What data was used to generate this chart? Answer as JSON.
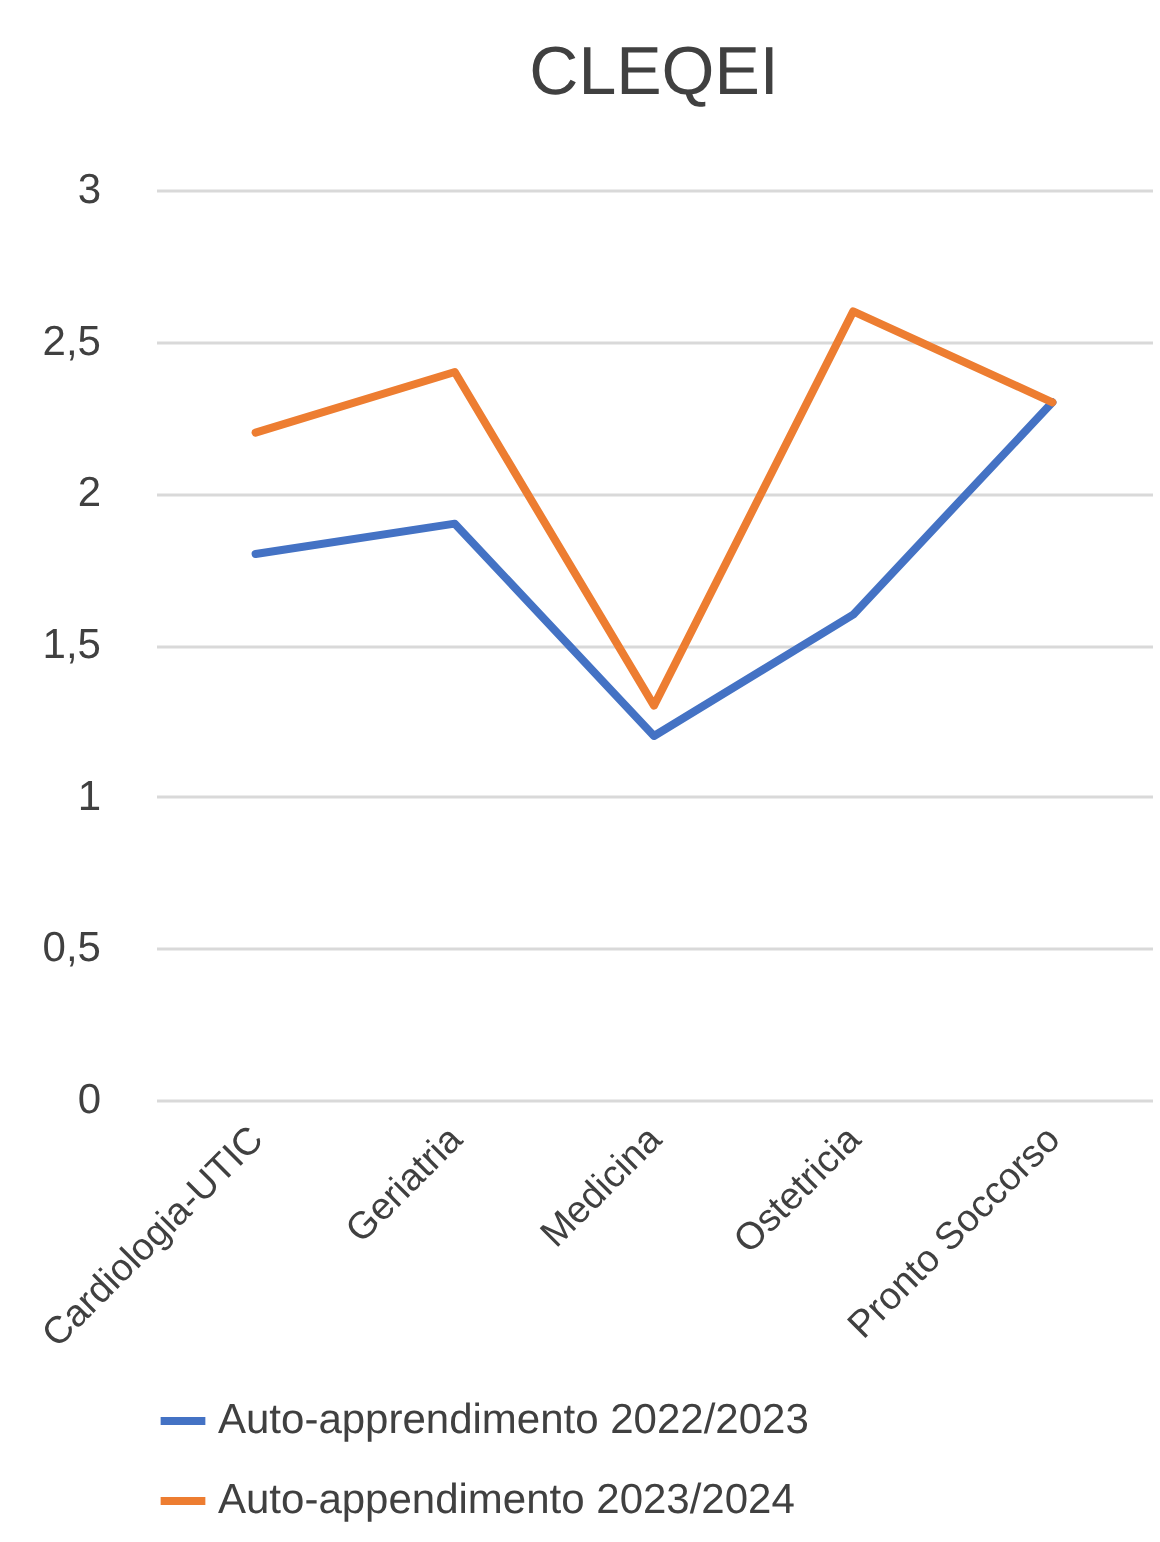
{
  "chart_data": {
    "type": "line",
    "title": "CLEQEI",
    "categories": [
      "Cardiologia-UTIC",
      "Geriatria",
      "Medicina",
      "Ostetricia",
      "Pronto Soccorso"
    ],
    "series": [
      {
        "name": "Auto-apprendimento 2022/2023",
        "color": "#4472c4",
        "values": [
          1.8,
          1.9,
          1.2,
          1.6,
          2.3
        ]
      },
      {
        "name": "Auto-appendimento 2023/2024",
        "color": "#ed7d31",
        "values": [
          2.2,
          2.4,
          1.3,
          2.6,
          2.3
        ]
      }
    ],
    "ylim": [
      0,
      3
    ],
    "yticks": [
      0,
      {
        "value": 0.5,
        "label": "0,5"
      },
      1,
      {
        "value": 1.5,
        "label": "1,5"
      },
      2,
      {
        "value": 2.5,
        "label": "2,5"
      },
      3
    ],
    "grid": "y",
    "legend": "bottom",
    "marker": "none",
    "line_style": "solid"
  }
}
